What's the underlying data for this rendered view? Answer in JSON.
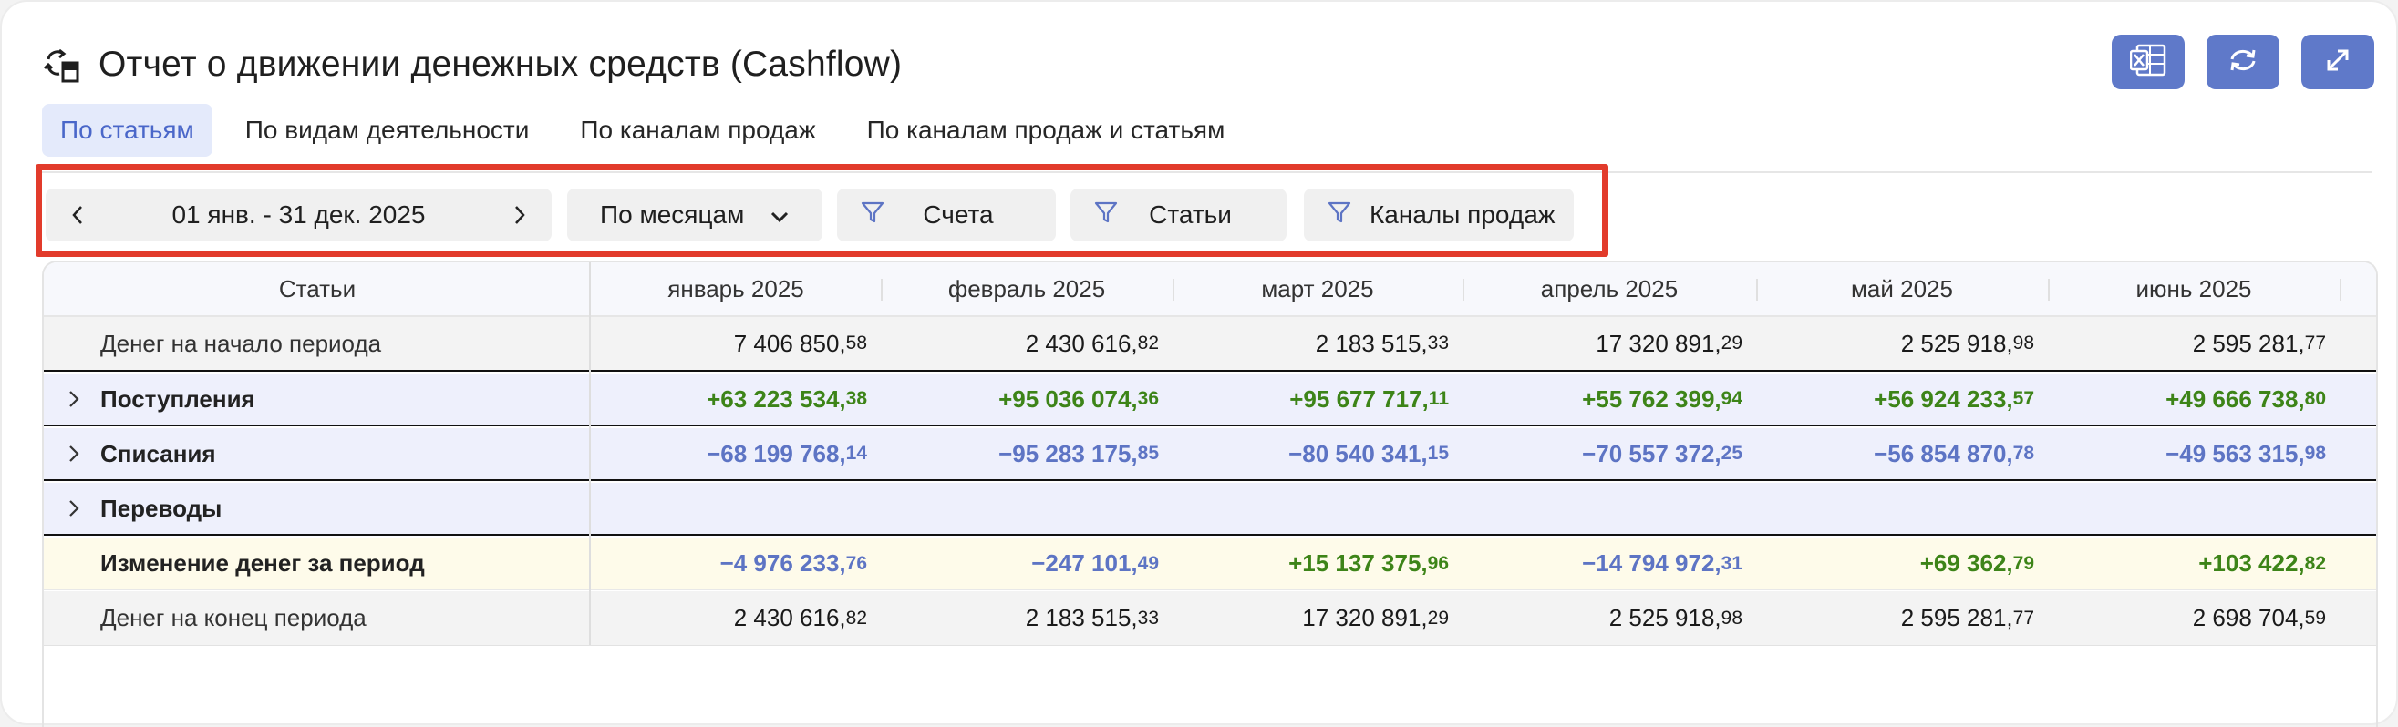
{
  "header": {
    "title": "Отчет о движении денежных средств (Cashflow)",
    "icon": "cashflow-icon"
  },
  "toolbar": {
    "buttons": [
      {
        "name": "excel-export-button",
        "icon": "excel-icon"
      },
      {
        "name": "refresh-button",
        "icon": "refresh-icon"
      },
      {
        "name": "expand-button",
        "icon": "expand-icon"
      }
    ]
  },
  "tabs": [
    {
      "label": "По статьям",
      "active": true
    },
    {
      "label": "По видам деятельности",
      "active": false
    },
    {
      "label": "По каналам продаж",
      "active": false
    },
    {
      "label": "По каналам продаж и статьям",
      "active": false
    }
  ],
  "filters": {
    "date_range": "01 янв. - 31 дек. 2025",
    "period": "По месяцам",
    "accounts": "Счета",
    "articles": "Статьи",
    "channels": "Каналы продаж"
  },
  "table": {
    "first_column_header": "Статьи",
    "columns": [
      "январь 2025",
      "февраль 2025",
      "март 2025",
      "апрель 2025",
      "май 2025",
      "июнь 2025"
    ],
    "rows": [
      {
        "label": "Денег на начало периода",
        "style": "plain",
        "values": [
          {
            "int": "7 406 850,",
            "dec": "58"
          },
          {
            "int": "2 430 616,",
            "dec": "82"
          },
          {
            "int": "2 183 515,",
            "dec": "33"
          },
          {
            "int": "17 320 891,",
            "dec": "29"
          },
          {
            "int": "2 525 918,",
            "dec": "98"
          },
          {
            "int": "2 595 281,",
            "dec": "77"
          }
        ]
      },
      {
        "label": "Поступления",
        "style": "bold",
        "values": [
          {
            "int": "+63 223 534,",
            "dec": "38"
          },
          {
            "int": "+95 036 074,",
            "dec": "36"
          },
          {
            "int": "+95 677 717,",
            "dec": "11"
          },
          {
            "int": "+55 762 399,",
            "dec": "94"
          },
          {
            "int": "+56 924 233,",
            "dec": "57"
          },
          {
            "int": "+49 666 738,",
            "dec": "80"
          }
        ]
      },
      {
        "label": "Списания",
        "style": "bold",
        "values": [
          {
            "int": "−68 199 768,",
            "dec": "14"
          },
          {
            "int": "−95 283 175,",
            "dec": "85"
          },
          {
            "int": "−80 540 341,",
            "dec": "15"
          },
          {
            "int": "−70 557 372,",
            "dec": "25"
          },
          {
            "int": "−56 854 870,",
            "dec": "78"
          },
          {
            "int": "−49 563 315,",
            "dec": "98"
          }
        ]
      },
      {
        "label": "Переводы",
        "style": "bold",
        "values": []
      },
      {
        "label": "Изменение денег за период",
        "style": "bold",
        "values": [
          {
            "int": "−4 976 233,",
            "dec": "76"
          },
          {
            "int": "−247 101,",
            "dec": "49"
          },
          {
            "int": "+15 137 375,",
            "dec": "96"
          },
          {
            "int": "−14 794 972,",
            "dec": "31"
          },
          {
            "int": "+69 362,",
            "dec": "79"
          },
          {
            "int": "+103 422,",
            "dec": "82"
          }
        ]
      },
      {
        "label": "Денег на конец периода",
        "style": "plain",
        "values": [
          {
            "int": "2 430 616,",
            "dec": "82"
          },
          {
            "int": "2 183 515,",
            "dec": "33"
          },
          {
            "int": "17 320 891,",
            "dec": "29"
          },
          {
            "int": "2 525 918,",
            "dec": "98"
          },
          {
            "int": "2 595 281,",
            "dec": "77"
          },
          {
            "int": "2 698 704,",
            "dec": "59"
          }
        ]
      }
    ]
  },
  "colors": {
    "accent": "#5f79c9",
    "positive": "#3d8418",
    "negative": "#5d74c4",
    "highlight_border": "#e23b2b"
  }
}
